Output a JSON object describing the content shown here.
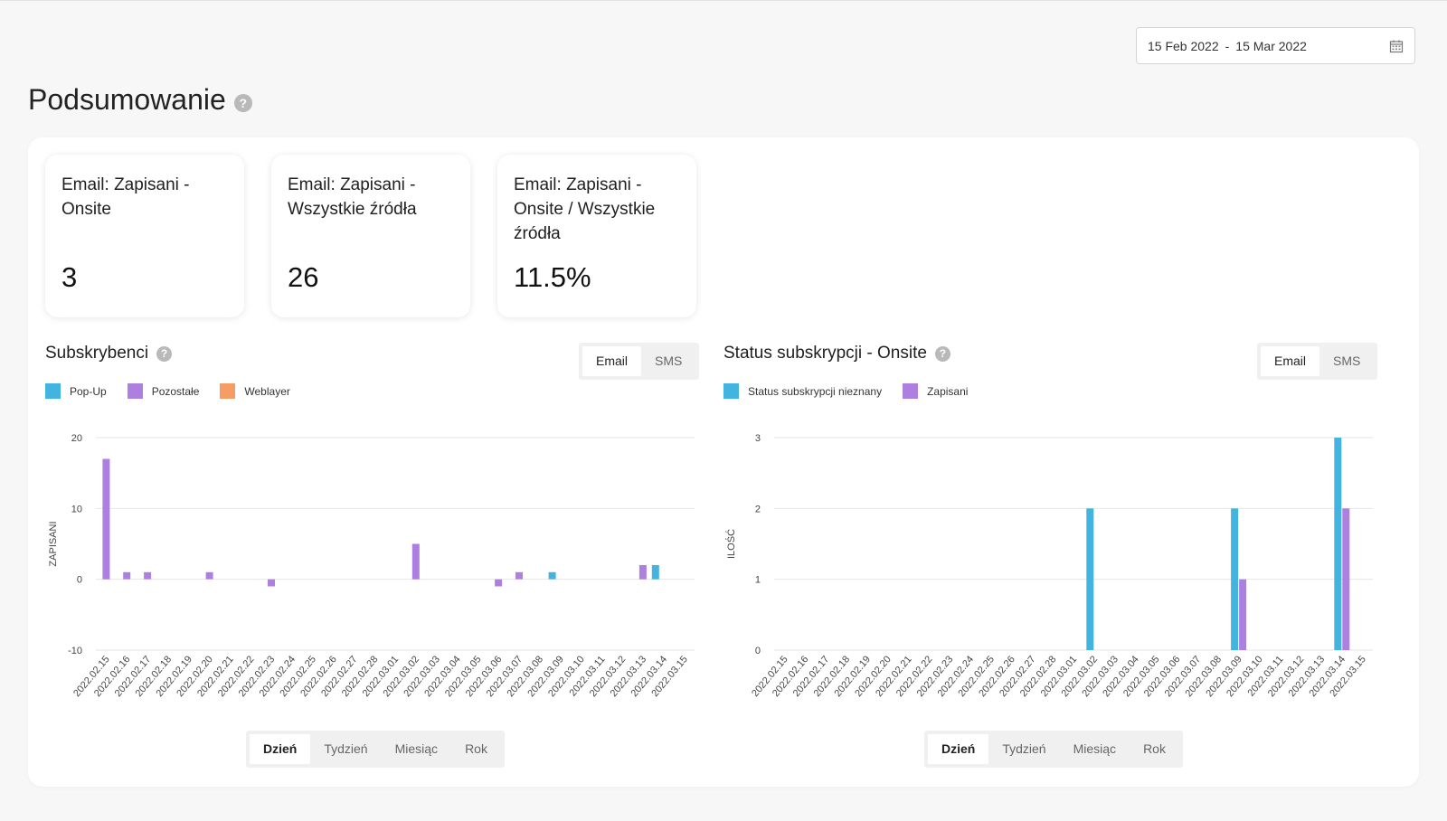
{
  "header": {
    "date_from": "15 Feb 2022",
    "date_sep": "-",
    "date_to": "15 Mar 2022",
    "title": "Podsumowanie",
    "help": "?"
  },
  "kpis": [
    {
      "label_lines": [
        "Email: Zapisani -",
        "Onsite"
      ],
      "value": "3"
    },
    {
      "label_lines": [
        "Email: Zapisani -",
        "Wszystkie źródła"
      ],
      "value": "26"
    },
    {
      "label_lines": [
        "Email: Zapisani -",
        "Onsite / Wszystkie",
        "źródła"
      ],
      "value": "11.5%"
    }
  ],
  "colors": {
    "popup": "#43b4e0",
    "pozostale": "#ad7fdf",
    "weblayer": "#f59d64",
    "grid": "#e6e6e6",
    "axis_text": "#444444"
  },
  "charts": [
    {
      "title": "Subskrybenci",
      "channel_toggle": {
        "options": [
          "Email",
          "SMS"
        ],
        "active": "Email"
      },
      "period_toggle": {
        "options": [
          "Dzień",
          "Tydzień",
          "Miesiąc",
          "Rok"
        ],
        "active": "Dzień"
      }
    },
    {
      "title": "Status subskrypcji - Onsite",
      "channel_toggle": {
        "options": [
          "Email",
          "SMS"
        ],
        "active": "Email"
      },
      "period_toggle": {
        "options": [
          "Dzień",
          "Tydzień",
          "Miesiąc",
          "Rok"
        ],
        "active": "Dzień"
      }
    }
  ],
  "chart_data": [
    {
      "type": "bar",
      "title": "Subskrybenci",
      "ylabel": "ZAPISANI",
      "xlabel": "",
      "ylim": [
        -10,
        20
      ],
      "yticks": [
        -10,
        0,
        10,
        20
      ],
      "grid": true,
      "legend": "top-left",
      "categories": [
        "2022.02.15",
        "2022.02.16",
        "2022.02.17",
        "2022.02.18",
        "2022.02.19",
        "2022.02.20",
        "2022.02.21",
        "2022.02.22",
        "2022.02.23",
        "2022.02.24",
        "2022.02.25",
        "2022.02.26",
        "2022.02.27",
        "2022.02.28",
        "2022.03.01",
        "2022.03.02",
        "2022.03.03",
        "2022.03.04",
        "2022.03.05",
        "2022.03.06",
        "2022.03.07",
        "2022.03.08",
        "2022.03.09",
        "2022.03.10",
        "2022.03.11",
        "2022.03.12",
        "2022.03.13",
        "2022.03.14",
        "2022.03.15"
      ],
      "series": [
        {
          "name": "Pop-Up",
          "color": "#43b4e0",
          "values": [
            0,
            0,
            0,
            0,
            0,
            0,
            0,
            0,
            0,
            0,
            0,
            0,
            0,
            0,
            0,
            0,
            0,
            0,
            0,
            0,
            0,
            0,
            1,
            0,
            0,
            0,
            0,
            2,
            0
          ]
        },
        {
          "name": "Pozostałe",
          "color": "#ad7fdf",
          "values": [
            17,
            1,
            1,
            0,
            0,
            1,
            0,
            0,
            -1,
            0,
            0,
            0,
            0,
            0,
            0,
            5,
            0,
            0,
            0,
            -1,
            1,
            0,
            0,
            0,
            0,
            0,
            2,
            0,
            0
          ]
        },
        {
          "name": "Weblayer",
          "color": "#f59d64",
          "values": [
            0,
            0,
            0,
            0,
            0,
            0,
            0,
            0,
            0,
            0,
            0,
            0,
            0,
            0,
            0,
            0,
            0,
            0,
            0,
            0,
            0,
            0,
            0,
            0,
            0,
            0,
            0,
            0,
            0
          ]
        }
      ]
    },
    {
      "type": "bar",
      "title": "Status subskrypcji - Onsite",
      "ylabel": "ILOŚĆ",
      "xlabel": "",
      "ylim": [
        0,
        3
      ],
      "yticks": [
        0,
        1,
        2,
        3
      ],
      "grid": true,
      "legend": "top-left",
      "categories": [
        "2022.02.15",
        "2022.02.16",
        "2022.02.17",
        "2022.02.18",
        "2022.02.19",
        "2022.02.20",
        "2022.02.21",
        "2022.02.22",
        "2022.02.23",
        "2022.02.24",
        "2022.02.25",
        "2022.02.26",
        "2022.02.27",
        "2022.02.28",
        "2022.03.01",
        "2022.03.02",
        "2022.03.03",
        "2022.03.04",
        "2022.03.05",
        "2022.03.06",
        "2022.03.07",
        "2022.03.08",
        "2022.03.09",
        "2022.03.10",
        "2022.03.11",
        "2022.03.12",
        "2022.03.13",
        "2022.03.14",
        "2022.03.15"
      ],
      "series": [
        {
          "name": "Status subskrypcji nieznany",
          "color": "#43b4e0",
          "values": [
            0,
            0,
            0,
            0,
            0,
            0,
            0,
            0,
            0,
            0,
            0,
            0,
            0,
            0,
            0,
            2,
            0,
            0,
            0,
            0,
            0,
            0,
            2,
            0,
            0,
            0,
            0,
            3,
            0
          ]
        },
        {
          "name": "Zapisani",
          "color": "#ad7fdf",
          "values": [
            0,
            0,
            0,
            0,
            0,
            0,
            0,
            0,
            0,
            0,
            0,
            0,
            0,
            0,
            0,
            0,
            0,
            0,
            0,
            0,
            0,
            0,
            1,
            0,
            0,
            0,
            0,
            2,
            0
          ]
        }
      ]
    }
  ]
}
